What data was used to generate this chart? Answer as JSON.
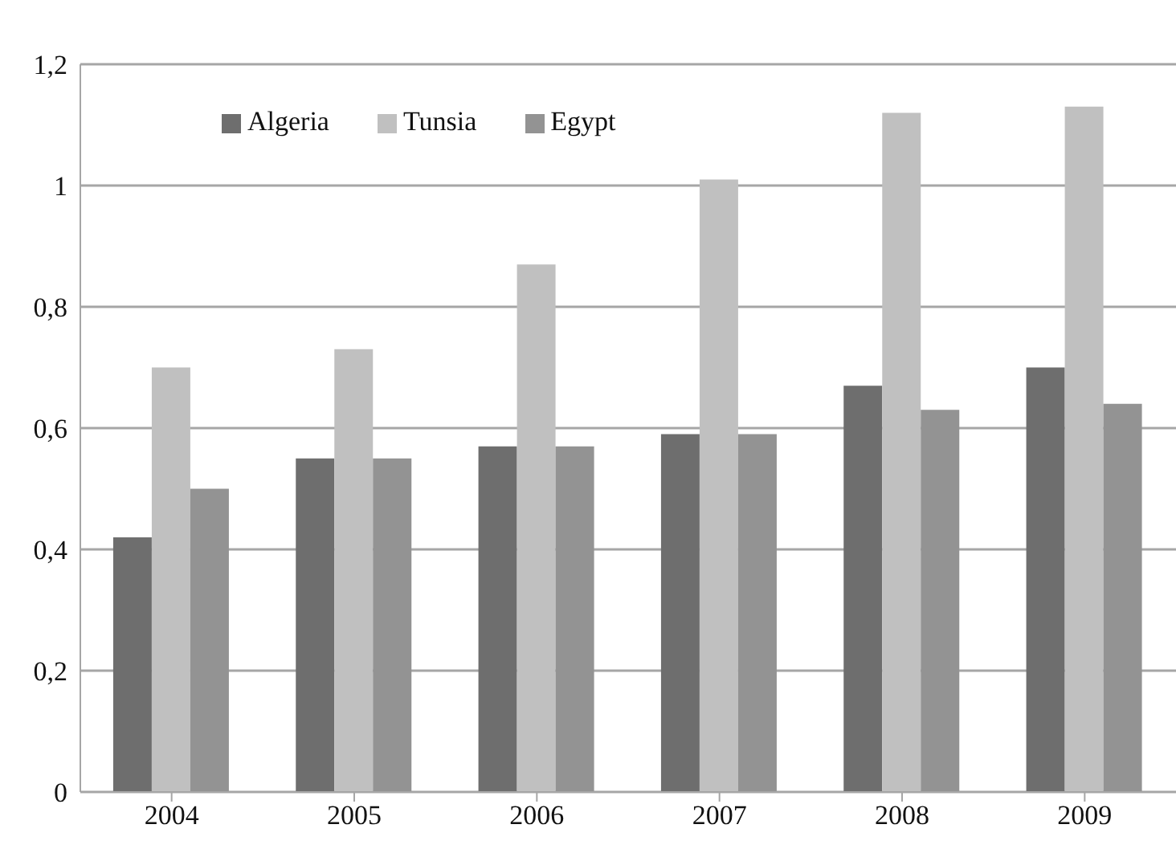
{
  "chart_data": {
    "type": "bar",
    "categories": [
      "2004",
      "2005",
      "2006",
      "2007",
      "2008",
      "2009"
    ],
    "series": [
      {
        "name": "Algeria",
        "color": "#6e6e6e",
        "values": [
          0.42,
          0.55,
          0.57,
          0.59,
          0.67,
          0.7
        ]
      },
      {
        "name": "Tunsia",
        "color": "#c0c0c0",
        "values": [
          0.7,
          0.73,
          0.87,
          1.01,
          1.12,
          1.13
        ]
      },
      {
        "name": "Egypt",
        "color": "#939393",
        "values": [
          0.5,
          0.55,
          0.57,
          0.59,
          0.63,
          0.64
        ]
      }
    ],
    "ylim": [
      0,
      1.2
    ],
    "yticks": [
      0,
      {
        "value": 0.2,
        "label": "0,2"
      },
      {
        "value": 0.4,
        "label": "0,4"
      },
      {
        "value": 0.6,
        "label": "0,6"
      },
      {
        "value": 0.8,
        "label": "0,8"
      },
      1,
      {
        "value": 1.2,
        "label": "1,2"
      }
    ],
    "grid": "y",
    "legend": "top left"
  }
}
